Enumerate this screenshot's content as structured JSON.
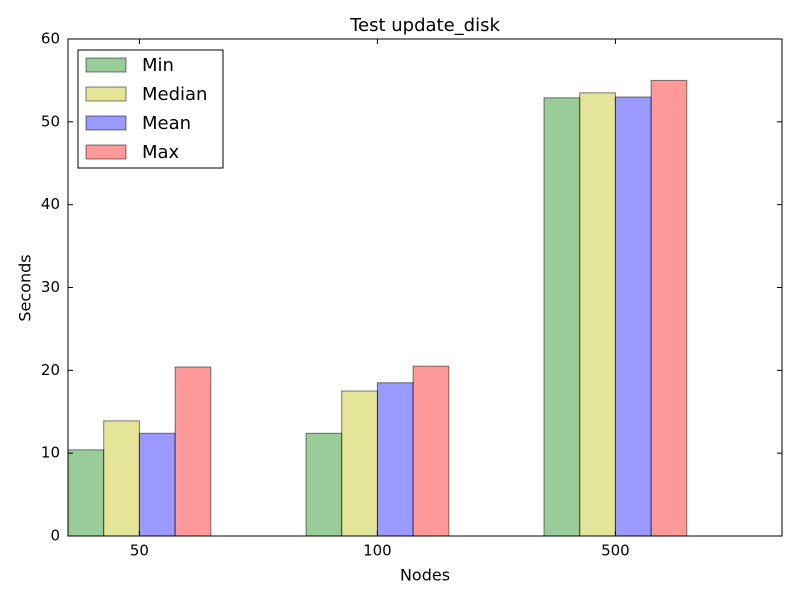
{
  "chart_data": {
    "type": "bar",
    "title": "Test update_disk",
    "x_label": "Nodes",
    "y_label": "Seconds",
    "categories": [
      "50",
      "100",
      "500"
    ],
    "series": [
      {
        "name": "Min",
        "color": "#008000",
        "values": [
          10.4,
          12.4,
          52.9
        ]
      },
      {
        "name": "Median",
        "color": "#bfbf00",
        "values": [
          13.9,
          17.5,
          53.5
        ]
      },
      {
        "name": "Mean",
        "color": "#0000ff",
        "values": [
          12.4,
          18.5,
          53.0
        ]
      },
      {
        "name": "Max",
        "color": "#ff0000",
        "values": [
          20.4,
          20.5,
          55.0
        ]
      }
    ],
    "ylim": [
      0,
      60
    ],
    "yticks": [
      0,
      10,
      20,
      30,
      40,
      50,
      60
    ],
    "legend": "upper left"
  }
}
